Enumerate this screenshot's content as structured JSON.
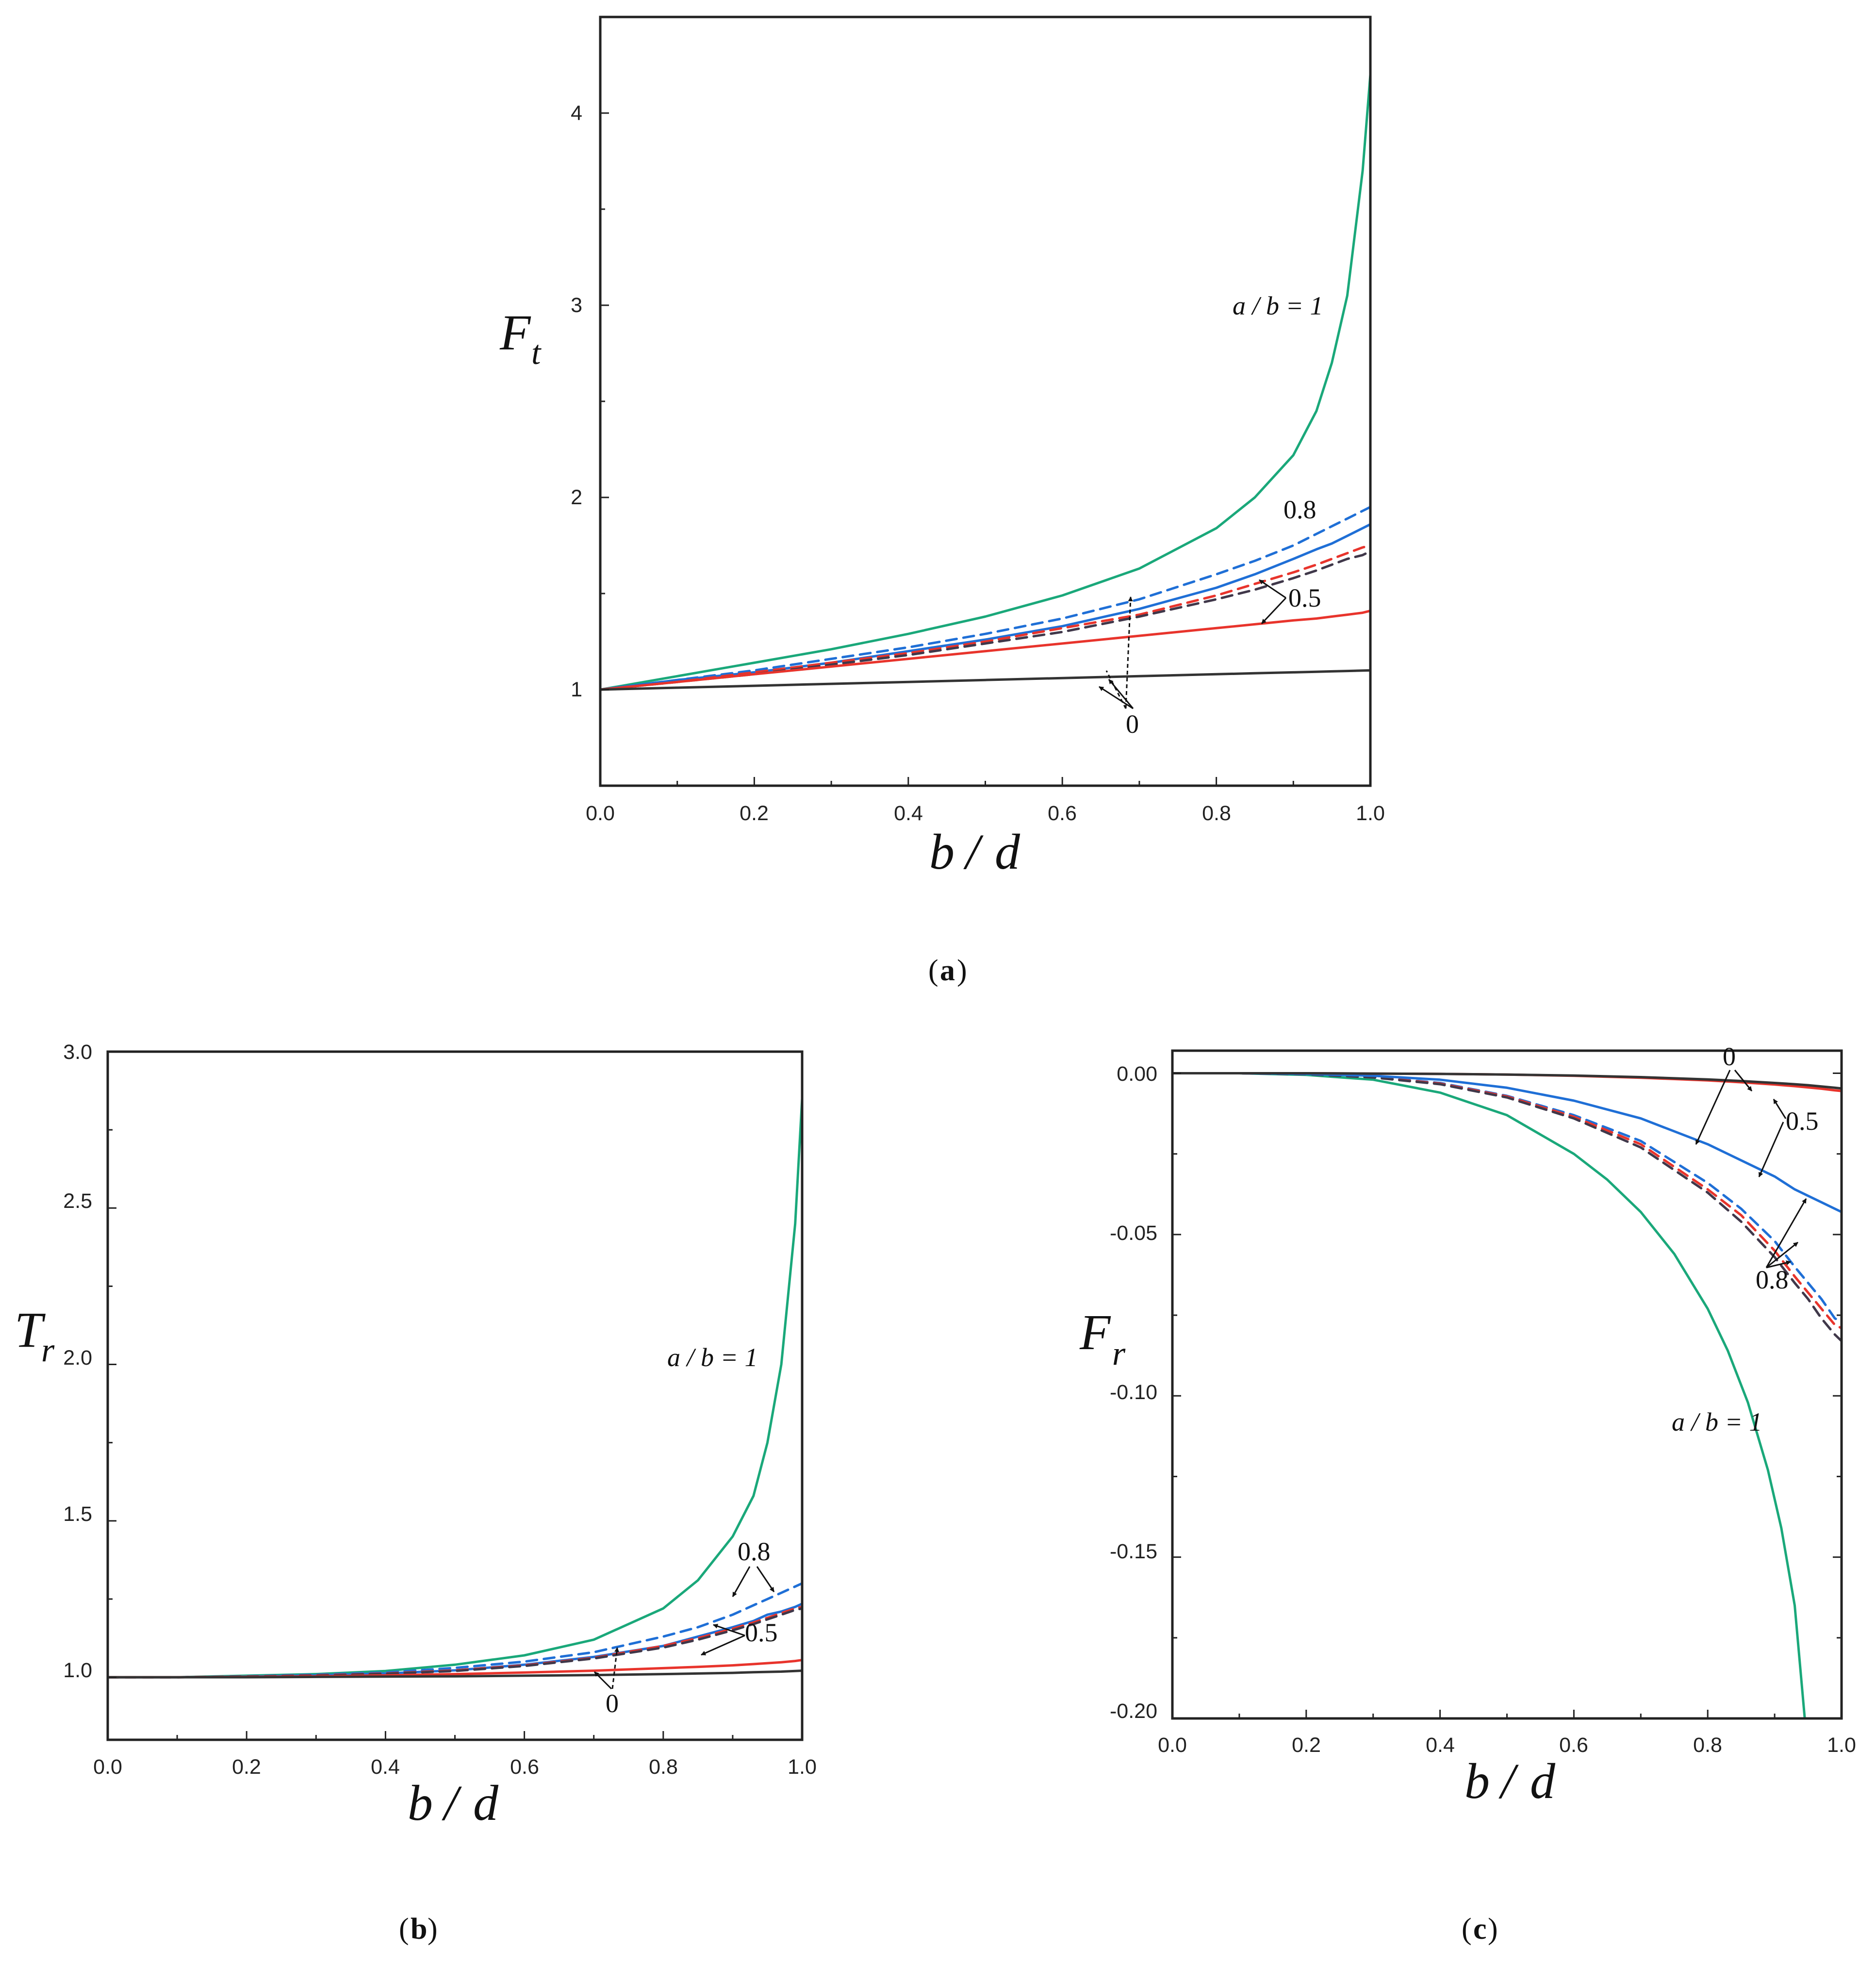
{
  "colors": {
    "green": "#1aa87a",
    "blue": "#1f6fd6",
    "red": "#e8342c",
    "black": "#333333",
    "dark_dashed": "#40384a"
  },
  "chart_data": [
    {
      "id": "a",
      "type": "line",
      "caption_letter": "a",
      "xlabel_parts": [
        "b",
        "/",
        "d"
      ],
      "ylabel_main": "F",
      "ylabel_sub": "t",
      "xlim": [
        0.0,
        1.0
      ],
      "ylim": [
        0.5,
        4.5
      ],
      "xticks": [
        "0.0",
        "0.2",
        "0.4",
        "0.6",
        "0.8",
        "1.0"
      ],
      "yticks": [
        "1",
        "2",
        "3",
        "4"
      ],
      "annotations": [
        "a / b = 1",
        "0.8",
        "0.5",
        "0"
      ],
      "x": [
        0.0,
        0.1,
        0.2,
        0.3,
        0.4,
        0.5,
        0.6,
        0.7,
        0.8,
        0.85,
        0.9,
        0.93,
        0.95,
        0.97,
        0.99,
        1.0
      ],
      "series": [
        {
          "color_key": "green",
          "style": "solid",
          "values": [
            1.0,
            1.07,
            1.14,
            1.21,
            1.29,
            1.38,
            1.49,
            1.63,
            1.84,
            2.0,
            2.22,
            2.45,
            2.7,
            3.05,
            3.7,
            4.2
          ]
        },
        {
          "color_key": "blue",
          "style": "dashed",
          "values": [
            1.0,
            1.05,
            1.1,
            1.16,
            1.22,
            1.29,
            1.37,
            1.47,
            1.6,
            1.67,
            1.75,
            1.81,
            1.85,
            1.89,
            1.93,
            1.95
          ]
        },
        {
          "color_key": "blue",
          "style": "solid",
          "values": [
            1.0,
            1.05,
            1.09,
            1.14,
            1.2,
            1.26,
            1.33,
            1.42,
            1.53,
            1.6,
            1.68,
            1.73,
            1.76,
            1.8,
            1.84,
            1.86
          ]
        },
        {
          "color_key": "red",
          "style": "dashed",
          "values": [
            1.0,
            1.04,
            1.09,
            1.14,
            1.19,
            1.25,
            1.32,
            1.39,
            1.49,
            1.55,
            1.61,
            1.65,
            1.68,
            1.71,
            1.74,
            1.75
          ]
        },
        {
          "color_key": "dark_dashed",
          "style": "dashed",
          "values": [
            1.0,
            1.04,
            1.08,
            1.13,
            1.18,
            1.24,
            1.3,
            1.38,
            1.47,
            1.52,
            1.58,
            1.62,
            1.65,
            1.68,
            1.7,
            1.72
          ]
        },
        {
          "color_key": "red",
          "style": "solid",
          "values": [
            1.0,
            1.04,
            1.08,
            1.12,
            1.16,
            1.2,
            1.24,
            1.28,
            1.32,
            1.34,
            1.36,
            1.37,
            1.38,
            1.39,
            1.4,
            1.41
          ]
        },
        {
          "color_key": "black",
          "style": "solid",
          "values": [
            1.0,
            1.01,
            1.02,
            1.03,
            1.04,
            1.05,
            1.06,
            1.07,
            1.08,
            1.085,
            1.09,
            1.093,
            1.095,
            1.097,
            1.099,
            1.1
          ]
        }
      ]
    },
    {
      "id": "b",
      "type": "line",
      "caption_letter": "b",
      "xlabel_parts": [
        "b",
        "/",
        "d"
      ],
      "ylabel_main": "T",
      "ylabel_sub": "r",
      "xlim": [
        0.0,
        1.0
      ],
      "ylim": [
        0.8,
        3.0
      ],
      "xticks": [
        "0.0",
        "0.2",
        "0.4",
        "0.6",
        "0.8",
        "1.0"
      ],
      "yticks": [
        "1.0",
        "1.5",
        "2.0",
        "2.5",
        "3.0"
      ],
      "annotations": [
        "a / b = 1",
        "0.8",
        "0.5",
        "0"
      ],
      "x": [
        0.0,
        0.1,
        0.2,
        0.3,
        0.4,
        0.5,
        0.6,
        0.7,
        0.8,
        0.85,
        0.9,
        0.93,
        0.95,
        0.97,
        0.99,
        1.0
      ],
      "series": [
        {
          "color_key": "green",
          "style": "solid",
          "values": [
            1.0,
            1.0,
            1.005,
            1.01,
            1.02,
            1.04,
            1.07,
            1.12,
            1.22,
            1.31,
            1.45,
            1.58,
            1.75,
            2.0,
            2.45,
            2.85
          ]
        },
        {
          "color_key": "blue",
          "style": "dashed",
          "values": [
            1.0,
            1.0,
            1.003,
            1.008,
            1.015,
            1.03,
            1.05,
            1.08,
            1.13,
            1.16,
            1.2,
            1.23,
            1.25,
            1.27,
            1.29,
            1.3
          ]
        },
        {
          "color_key": "blue",
          "style": "solid",
          "values": [
            1.0,
            1.0,
            1.002,
            1.006,
            1.012,
            1.022,
            1.04,
            1.065,
            1.1,
            1.13,
            1.16,
            1.18,
            1.2,
            1.21,
            1.225,
            1.235
          ]
        },
        {
          "color_key": "red",
          "style": "dashed",
          "values": [
            1.0,
            1.0,
            1.002,
            1.006,
            1.012,
            1.022,
            1.038,
            1.062,
            1.1,
            1.125,
            1.155,
            1.175,
            1.19,
            1.205,
            1.22,
            1.225
          ]
        },
        {
          "color_key": "dark_dashed",
          "style": "dashed",
          "values": [
            1.0,
            1.0,
            1.002,
            1.005,
            1.011,
            1.02,
            1.036,
            1.06,
            1.095,
            1.12,
            1.15,
            1.17,
            1.185,
            1.2,
            1.215,
            1.22
          ]
        },
        {
          "color_key": "red",
          "style": "solid",
          "values": [
            1.0,
            1.0,
            1.001,
            1.003,
            1.006,
            1.01,
            1.015,
            1.021,
            1.029,
            1.033,
            1.038,
            1.042,
            1.045,
            1.048,
            1.052,
            1.055
          ]
        },
        {
          "color_key": "black",
          "style": "solid",
          "values": [
            1.0,
            1.0,
            1.0,
            1.001,
            1.002,
            1.003,
            1.005,
            1.007,
            1.01,
            1.012,
            1.014,
            1.016,
            1.017,
            1.018,
            1.02,
            1.021
          ]
        }
      ]
    },
    {
      "id": "c",
      "type": "line",
      "caption_letter": "c",
      "xlabel_parts": [
        "b",
        "/",
        "d"
      ],
      "ylabel_main": "F",
      "ylabel_sub": "r",
      "xlim": [
        0.0,
        1.0
      ],
      "ylim": [
        -0.2,
        0.007
      ],
      "xticks": [
        "0.0",
        "0.2",
        "0.4",
        "0.6",
        "0.8",
        "1.0"
      ],
      "yticks": [
        "0.00",
        "-0.05",
        "-0.10",
        "-0.15",
        "-0.20"
      ],
      "annotations": [
        "0",
        "0.5",
        "0.8",
        "a / b = 1"
      ],
      "x": [
        0.0,
        0.1,
        0.2,
        0.3,
        0.4,
        0.5,
        0.6,
        0.7,
        0.8,
        0.85,
        0.9,
        0.93,
        0.95,
        0.97,
        0.99,
        1.0
      ],
      "series": [
        {
          "color_key": "green",
          "style": "solid",
          "x": [
            0.0,
            0.1,
            0.2,
            0.3,
            0.4,
            0.5,
            0.6,
            0.65,
            0.7,
            0.75,
            0.8,
            0.83,
            0.86,
            0.89,
            0.91,
            0.93,
            0.945
          ],
          "values": [
            0.0,
            0.0,
            -0.0005,
            -0.002,
            -0.006,
            -0.013,
            -0.025,
            -0.033,
            -0.043,
            -0.056,
            -0.073,
            -0.086,
            -0.102,
            -0.123,
            -0.141,
            -0.165,
            -0.2
          ]
        },
        {
          "color_key": "blue",
          "style": "dashed",
          "values": [
            0.0,
            0.0,
            -0.0003,
            -0.0012,
            -0.003,
            -0.007,
            -0.013,
            -0.021,
            -0.034,
            -0.042,
            -0.052,
            -0.06,
            -0.065,
            -0.07,
            -0.076,
            -0.077
          ]
        },
        {
          "color_key": "red",
          "style": "dashed",
          "values": [
            0.0,
            0.0,
            -0.0003,
            -0.0012,
            -0.0032,
            -0.0072,
            -0.0135,
            -0.022,
            -0.036,
            -0.044,
            -0.055,
            -0.063,
            -0.068,
            -0.073,
            -0.078,
            -0.079
          ]
        },
        {
          "color_key": "dark_dashed",
          "style": "dashed",
          "values": [
            0.0,
            0.0,
            -0.0003,
            -0.0013,
            -0.0034,
            -0.0075,
            -0.014,
            -0.023,
            -0.037,
            -0.046,
            -0.057,
            -0.065,
            -0.07,
            -0.076,
            -0.081,
            -0.083
          ]
        },
        {
          "color_key": "blue",
          "style": "solid",
          "values": [
            0.0,
            0.0,
            -0.0002,
            -0.0008,
            -0.002,
            -0.0045,
            -0.0085,
            -0.014,
            -0.022,
            -0.027,
            -0.032,
            -0.036,
            -0.038,
            -0.04,
            -0.042,
            -0.043
          ]
        },
        {
          "color_key": "red",
          "style": "solid",
          "values": [
            0.0,
            0.0,
            0.0,
            -0.0001,
            -0.0002,
            -0.0004,
            -0.0008,
            -0.0014,
            -0.0022,
            -0.0028,
            -0.0035,
            -0.004,
            -0.0044,
            -0.0048,
            -0.0053,
            -0.0055
          ]
        },
        {
          "color_key": "black",
          "style": "solid",
          "values": [
            0.0,
            0.0,
            0.0,
            -0.0001,
            -0.0002,
            -0.0004,
            -0.0007,
            -0.0012,
            -0.0019,
            -0.0024,
            -0.003,
            -0.0034,
            -0.0037,
            -0.0041,
            -0.0045,
            -0.0047
          ]
        }
      ]
    }
  ]
}
